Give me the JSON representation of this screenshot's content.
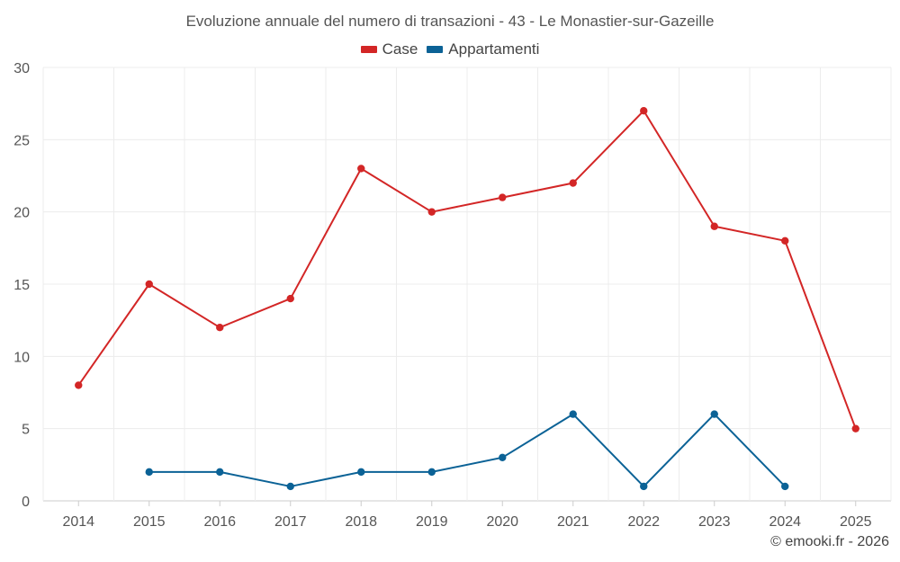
{
  "chart_data": {
    "type": "line",
    "title": "Evoluzione annuale del numero di transazioni - 43 - Le Monastier-sur-Gazeille",
    "categories": [
      "2014",
      "2015",
      "2016",
      "2017",
      "2018",
      "2019",
      "2020",
      "2021",
      "2022",
      "2023",
      "2024",
      "2025"
    ],
    "series": [
      {
        "name": "Case",
        "color": "#d32626",
        "values": [
          8,
          15,
          12,
          14,
          23,
          20,
          21,
          22,
          27,
          19,
          18,
          5
        ]
      },
      {
        "name": "Appartamenti",
        "color": "#0b6296",
        "values": [
          null,
          2,
          2,
          1,
          2,
          2,
          3,
          6,
          1,
          6,
          1,
          null
        ]
      }
    ],
    "ylim": [
      0,
      30
    ],
    "yticks": [
      "0",
      "5",
      "10",
      "15",
      "20",
      "25",
      "30"
    ],
    "xlabel": "",
    "ylabel": "",
    "grid": true,
    "legend": "top-center"
  },
  "credit": "© emooki.fr - 2026"
}
